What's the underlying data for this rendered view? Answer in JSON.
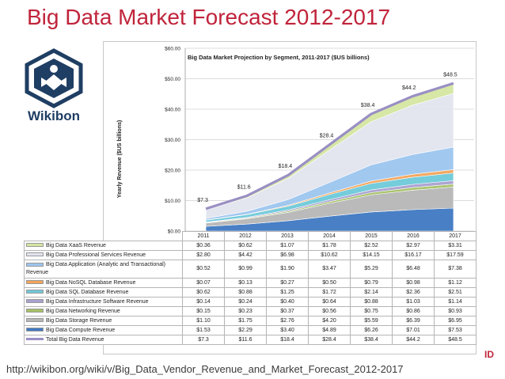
{
  "slide_title": "Big Data Market Forecast 2012-2017",
  "logo_text": "Wikibon",
  "source_url": "http://wikibon.org/wiki/v/Big_Data_Vendor_Revenue_and_Market_Forecast_2012-2017",
  "brand_fragment": "ID",
  "colors": {
    "title": "#c0243b",
    "logo": "#1f3e63",
    "total_line": "#9a8fc4"
  },
  "chart_data": {
    "type": "area",
    "title": "Big Data Market Projection by Segment, 2011-2017 ($US billions)",
    "ylabel": "Yearly Revenue ($US billions)",
    "xlabel": "",
    "ylim": [
      0,
      60
    ],
    "yticks": [
      "$0.00",
      "$10.00",
      "$20.00",
      "$30.00",
      "$40.00",
      "$50.00",
      "$60.00"
    ],
    "grid": true,
    "stacked": true,
    "categories": [
      "2011",
      "2012",
      "2013",
      "2014",
      "2015",
      "2016",
      "2017"
    ],
    "series": [
      {
        "name": "Big Data XaaS Revenue",
        "values": [
          0.36,
          0.62,
          1.07,
          1.78,
          2.52,
          2.97,
          3.31
        ],
        "labels": [
          "$0.36",
          "$0.62",
          "$1.07",
          "$1.78",
          "$2.52",
          "$2.97",
          "$3.31"
        ],
        "color": "#d4e6a1"
      },
      {
        "name": "Big Data Professional Services Revenue",
        "values": [
          2.8,
          4.42,
          6.98,
          10.62,
          14.15,
          16.17,
          17.59
        ],
        "labels": [
          "$2.80",
          "$4.42",
          "$6.98",
          "$10.62",
          "$14.15",
          "$16.17",
          "$17.59"
        ],
        "color": "#e2e4ee"
      },
      {
        "name": "Big Data Application (Analytic and Transactional) Revenue",
        "values": [
          0.52,
          0.99,
          1.9,
          3.47,
          5.29,
          6.48,
          7.38
        ],
        "labels": [
          "$0.52",
          "$0.99",
          "$1.90",
          "$3.47",
          "$5.29",
          "$6.48",
          "$7.38"
        ],
        "color": "#9cc5ee"
      },
      {
        "name": "Big Data NoSQL Database Revenue",
        "values": [
          0.07,
          0.13,
          0.27,
          0.5,
          0.79,
          0.98,
          1.12
        ],
        "labels": [
          "$0.07",
          "$0.13",
          "$0.27",
          "$0.50",
          "$0.79",
          "$0.98",
          "$1.12"
        ],
        "color": "#f3a45a"
      },
      {
        "name": "Big Data SQL Database Revenue",
        "values": [
          0.62,
          0.88,
          1.25,
          1.72,
          2.14,
          2.36,
          2.51
        ],
        "labels": [
          "$0.62",
          "$0.88",
          "$1.25",
          "$1.72",
          "$2.14",
          "$2.36",
          "$2.51"
        ],
        "color": "#6ec9d9"
      },
      {
        "name": "Big Data Infrastructure Software Revenue",
        "values": [
          0.14,
          0.24,
          0.4,
          0.64,
          0.88,
          1.03,
          1.14
        ],
        "labels": [
          "$0.14",
          "$0.24",
          "$0.40",
          "$0.64",
          "$0.88",
          "$1.03",
          "$1.14"
        ],
        "color": "#a9a0cf"
      },
      {
        "name": "Big Data Networking Revenue",
        "values": [
          0.15,
          0.23,
          0.37,
          0.56,
          0.75,
          0.86,
          0.93
        ],
        "labels": [
          "$0.15",
          "$0.23",
          "$0.37",
          "$0.56",
          "$0.75",
          "$0.86",
          "$0.93"
        ],
        "color": "#a4c165"
      },
      {
        "name": "Big Data Storage Revenue",
        "values": [
          1.1,
          1.75,
          2.76,
          4.2,
          5.59,
          6.39,
          6.95
        ],
        "labels": [
          "$1.10",
          "$1.75",
          "$2.76",
          "$4.20",
          "$5.59",
          "$6.39",
          "$6.95"
        ],
        "color": "#b6b6b6"
      },
      {
        "name": "Big Data Compute Revenue",
        "values": [
          1.53,
          2.29,
          3.4,
          4.89,
          6.26,
          7.01,
          7.53
        ],
        "labels": [
          "$1.53",
          "$2.29",
          "$3.40",
          "$4.89",
          "$6.26",
          "$7.01",
          "$7.53"
        ],
        "color": "#3f78c2"
      }
    ],
    "total": {
      "name": "Total Big Data Revenue",
      "values": [
        7.3,
        11.6,
        18.4,
        28.4,
        38.4,
        44.2,
        48.5
      ],
      "labels": [
        "$7.3",
        "$11.6",
        "$18.4",
        "$28.4",
        "$38.4",
        "$44.2",
        "$48.5"
      ],
      "color": "#9a8fc4"
    }
  }
}
